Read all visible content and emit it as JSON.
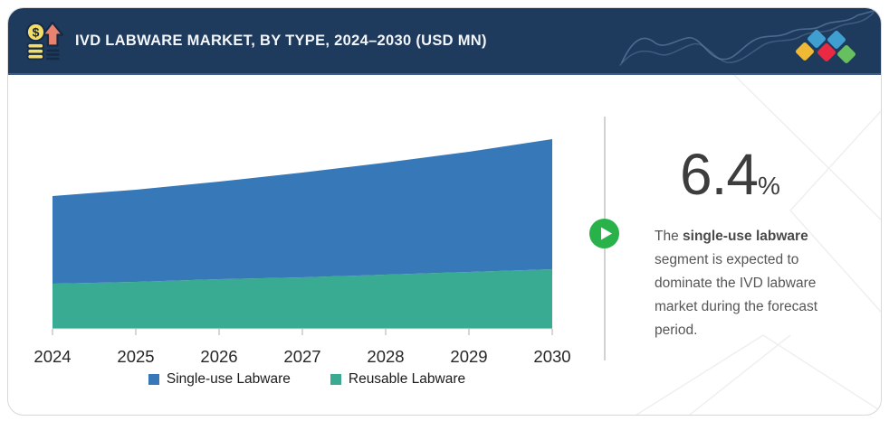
{
  "header": {
    "title": "IVD LABWARE MARKET, BY TYPE, 2024–2030 (USD MN)",
    "background_color": "#1e3a5c",
    "icon": "coins-growth-icon",
    "logo_diamond_colors": [
      "#efb835",
      "#3f9fd0",
      "#ea2a43",
      "#3f9fd0",
      "#67c05f"
    ]
  },
  "chart_data": {
    "type": "area",
    "stacked": true,
    "title": "IVD LABWARE MARKET, BY TYPE, 2024–2030 (USD MN)",
    "x": [
      "2024",
      "2025",
      "2026",
      "2027",
      "2028",
      "2029",
      "2030"
    ],
    "series": [
      {
        "name": "Single-use Labware",
        "color": "#3778b8",
        "values": [
          97,
          102,
          108,
          116,
          124,
          133,
          144
        ]
      },
      {
        "name": "Reusable Labware",
        "color": "#3aab93",
        "values": [
          50,
          52,
          55,
          57,
          60,
          63,
          66
        ]
      }
    ],
    "stack_bottom_series": "Reusable Labware",
    "xlabel": "",
    "ylabel": "",
    "y_axis_shown": false,
    "value_note": "No y-axis in figure; series values estimated from area pixel heights (relative USD MN)",
    "legend_position": "bottom",
    "grid": false
  },
  "legend": {
    "items": [
      {
        "label": "Single-use Labware",
        "color": "#3778b8"
      },
      {
        "label": "Reusable Labware",
        "color": "#3aab93"
      }
    ]
  },
  "insight": {
    "stat_value": "6.4",
    "stat_unit": "%",
    "sentence_prefix": "The ",
    "sentence_bold": "single-use labware",
    "sentence_suffix": " segment is expected to dominate the IVD labware market during the forecast period.",
    "play_button_color": "#29b14a"
  }
}
